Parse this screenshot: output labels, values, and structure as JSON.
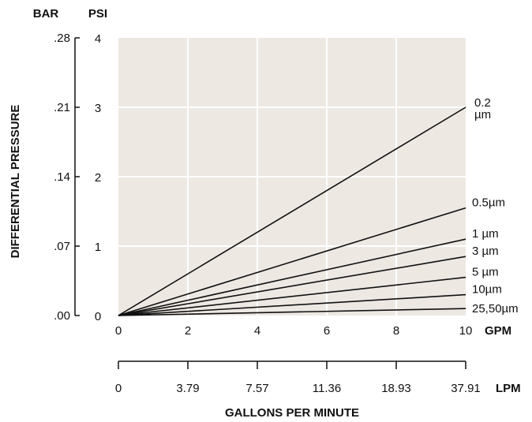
{
  "chart_data": {
    "type": "line",
    "y_axes": {
      "left_unit": "BAR",
      "left_ticks": [
        ".00",
        ".07",
        ".14",
        ".21",
        ".28"
      ],
      "right_unit": "PSI",
      "right_ticks": [
        "0",
        "1",
        "2",
        "3",
        "4"
      ],
      "ylabel": "DIFFERENTIAL PRESSURE",
      "ylim": [
        0,
        4
      ]
    },
    "x_axes": {
      "gpm_unit": "GPM",
      "gpm_ticks": [
        "0",
        "2",
        "4",
        "6",
        "8",
        "10"
      ],
      "lpm_unit": "LPM",
      "lpm_ticks": [
        "0",
        "3.79",
        "7.57",
        "11.36",
        "18.93",
        "37.91"
      ],
      "xlabel": "GALLONS PER MINUTE",
      "xlim": [
        0,
        10
      ]
    },
    "grid": true,
    "series": [
      {
        "name": "0.2 µm",
        "label_lines": [
          "0.2",
          "µm"
        ],
        "x": [
          0,
          10
        ],
        "y": [
          0,
          3.0
        ]
      },
      {
        "name": "0.5µm",
        "label_lines": [
          "0.5µm"
        ],
        "x": [
          0,
          10
        ],
        "y": [
          0,
          1.55
        ]
      },
      {
        "name": "1 µm",
        "label_lines": [
          "1 µm"
        ],
        "x": [
          0,
          10
        ],
        "y": [
          0,
          1.1
        ]
      },
      {
        "name": "3 µm",
        "label_lines": [
          "3 µm"
        ],
        "x": [
          0,
          10
        ],
        "y": [
          0,
          0.85
        ]
      },
      {
        "name": "5 µm",
        "label_lines": [
          "5 µm"
        ],
        "x": [
          0,
          10
        ],
        "y": [
          0,
          0.55
        ]
      },
      {
        "name": "10µm",
        "label_lines": [
          "10µm"
        ],
        "x": [
          0,
          10
        ],
        "y": [
          0,
          0.3
        ]
      },
      {
        "name": "25,50µm",
        "label_lines": [
          "25,50µm"
        ],
        "x": [
          0,
          10
        ],
        "y": [
          0,
          0.1
        ]
      }
    ]
  }
}
